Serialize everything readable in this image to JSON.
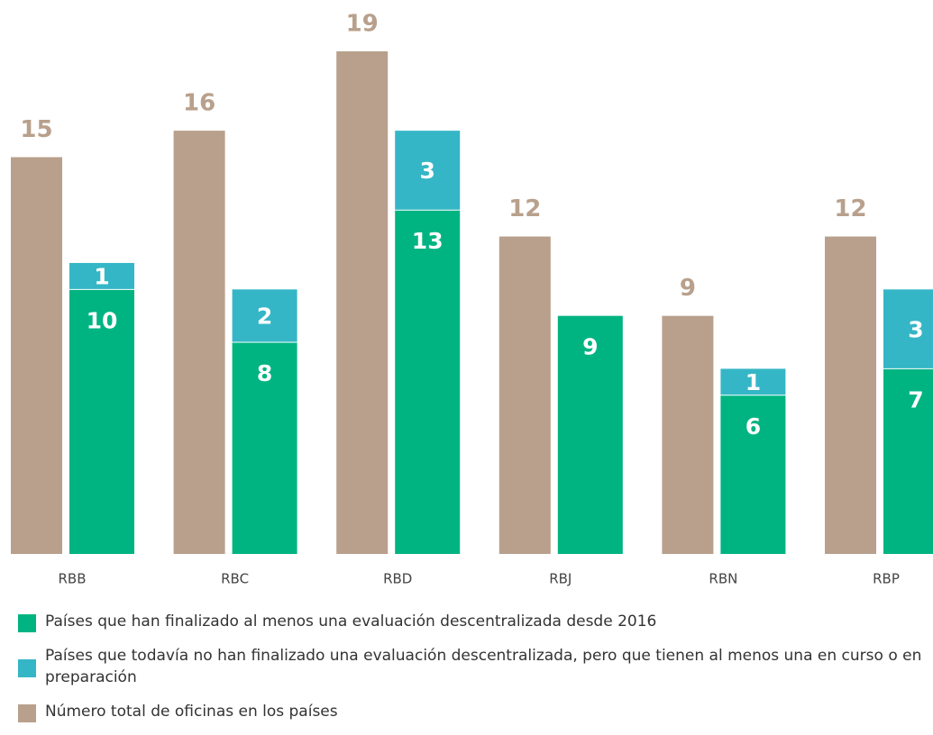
{
  "chart_data": {
    "type": "bar",
    "categories": [
      "RBB",
      "RBC",
      "RBD",
      "RBJ",
      "RBN",
      "RBP"
    ],
    "series": [
      {
        "name": "Países que han finalizado al menos una evaluación descentralizada desde 2016",
        "color": "#00b482",
        "values": [
          10,
          8,
          13,
          9,
          6,
          7
        ]
      },
      {
        "name": "Países que todavía no han finalizado una evaluación descentralizada, pero que tienen al menos una en curso o en preparación",
        "color": "#35b6c6",
        "values": [
          1,
          2,
          3,
          null,
          1,
          3
        ]
      },
      {
        "name": "Número total de oficinas en los países",
        "color": "#b8a08c",
        "values": [
          15,
          16,
          19,
          12,
          9,
          12
        ]
      }
    ],
    "ylim": [
      0,
      19
    ]
  }
}
